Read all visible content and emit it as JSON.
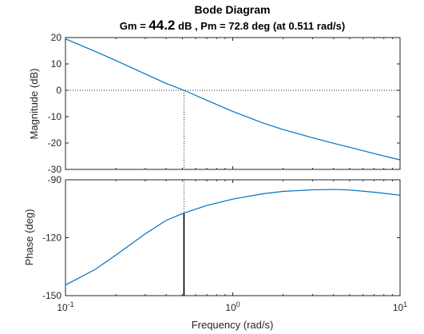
{
  "chart_data": {
    "type": "line",
    "title": "Bode Diagram",
    "subtitle_prefix": "Gm = ",
    "subtitle_gm": "44.2",
    "subtitle_suffix": " dB ,  Pm = 72.8 deg (at 0.511 rad/s)",
    "xlabel": "Frequency  (rad/s)",
    "x_scale": "log",
    "xlim": [
      0.1,
      10
    ],
    "x_ticks": [
      {
        "base": "10",
        "exp": "-1",
        "value": 0.1
      },
      {
        "base": "10",
        "exp": "0",
        "value": 1
      },
      {
        "base": "10",
        "exp": "1",
        "value": 10
      }
    ],
    "grid": false,
    "line_color": "#0072BD",
    "crossover_frequency": 0.511,
    "magnitude": {
      "ylabel": "Magnitude (dB)",
      "ylim": [
        -30,
        20
      ],
      "y_ticks": [
        "20",
        "10",
        "0",
        "-10",
        "-20",
        "-30"
      ],
      "y_tick_values": [
        20,
        10,
        0,
        -10,
        -20,
        -30
      ],
      "reference_line_db": 0,
      "x": [
        0.1,
        0.15,
        0.2,
        0.3,
        0.4,
        0.511,
        0.7,
        1.0,
        1.5,
        2.0,
        3.0,
        4.0,
        5.0,
        7.0,
        10.0
      ],
      "y": [
        19.5,
        14.8,
        11.3,
        6.2,
        2.6,
        0.0,
        -3.8,
        -8.0,
        -12.3,
        -14.9,
        -18.0,
        -20.1,
        -21.6,
        -24.0,
        -26.4
      ]
    },
    "phase": {
      "ylabel": "Phase (deg)",
      "ylim": [
        -150,
        -90
      ],
      "y_ticks": [
        "-90",
        "-120",
        "-150"
      ],
      "y_tick_values": [
        -90,
        -120,
        -150
      ],
      "margin_marker_deg": -107.2,
      "x": [
        0.1,
        0.15,
        0.2,
        0.3,
        0.4,
        0.511,
        0.7,
        1.0,
        1.5,
        2.0,
        3.0,
        4.0,
        5.0,
        7.0,
        10.0
      ],
      "y": [
        -144.5,
        -136.5,
        -129.0,
        -118.0,
        -111.0,
        -107.2,
        -103.3,
        -100.0,
        -97.3,
        -96.0,
        -95.2,
        -95.0,
        -95.3,
        -96.4,
        -98.0
      ]
    }
  }
}
